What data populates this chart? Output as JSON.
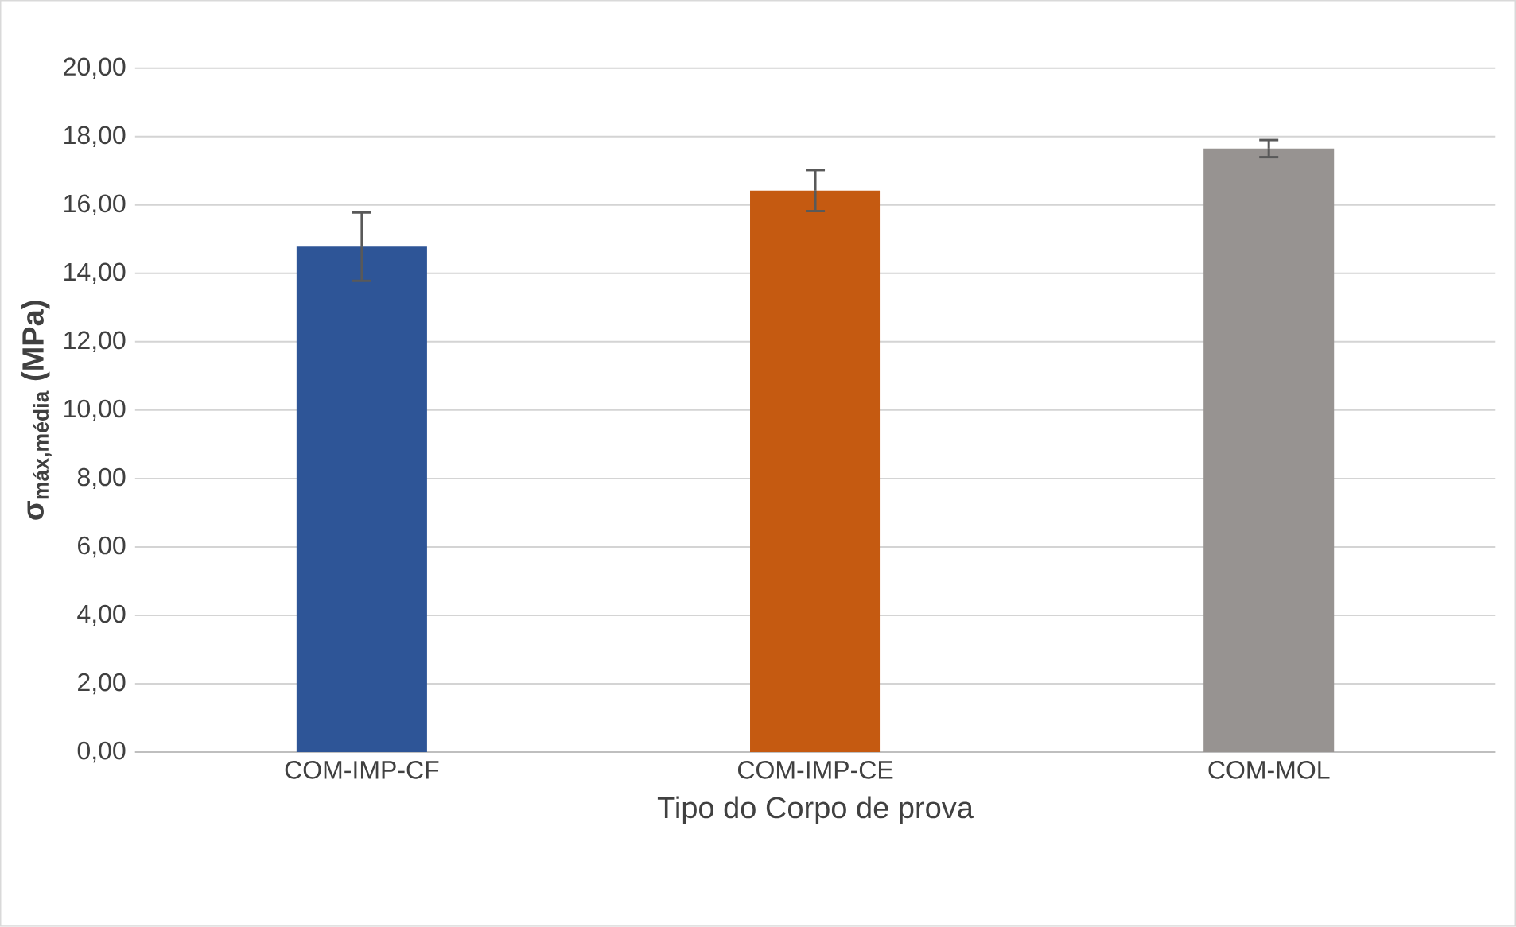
{
  "chart_data": {
    "type": "bar",
    "xlabel": "Tipo do Corpo de prova",
    "ylabel": "σ$_{máx,média}$ (MPa)",
    "categories": [
      "COM-IMP-CF",
      "COM-IMP-CE",
      "COM-MOL"
    ],
    "values": [
      14.78,
      16.42,
      17.65
    ],
    "errors": [
      1.0,
      0.6,
      0.25
    ],
    "colors": [
      "#2e5597",
      "#c55a11",
      "#979391"
    ],
    "ylim": [
      0,
      20
    ],
    "yticks": [
      {
        "value": 0,
        "label": "0,00"
      },
      {
        "value": 2,
        "label": "2,00"
      },
      {
        "value": 4,
        "label": "4,00"
      },
      {
        "value": 6,
        "label": "6,00"
      },
      {
        "value": 8,
        "label": "8,00"
      },
      {
        "value": 10,
        "label": "10,00"
      },
      {
        "value": 12,
        "label": "12,00"
      },
      {
        "value": 14,
        "label": "14,00"
      },
      {
        "value": 16,
        "label": "16,00"
      },
      {
        "value": 18,
        "label": "18,00"
      },
      {
        "value": 20,
        "label": "20,00"
      }
    ],
    "grid": "y"
  }
}
